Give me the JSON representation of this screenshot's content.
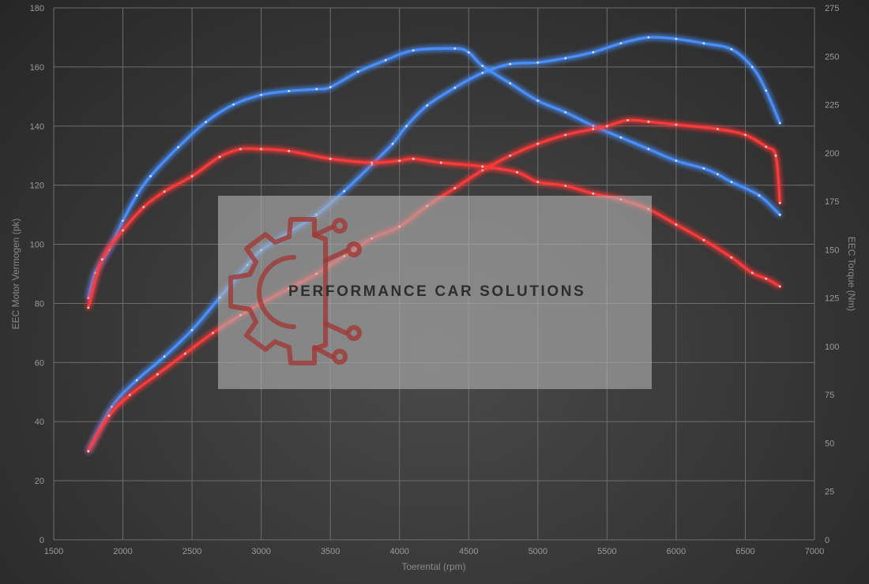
{
  "chart_data": {
    "type": "line",
    "xlabel": "Toerental (rpm)",
    "ylabel_left": "EEC Motor Vermogen (pk)",
    "ylabel_right": "EEC Torque (Nm)",
    "xlim": [
      1500,
      7000
    ],
    "ylim_left": [
      0,
      180
    ],
    "ylim_right": [
      0,
      275
    ],
    "x_ticks": [
      1500,
      2000,
      2500,
      3000,
      3500,
      4000,
      4500,
      5000,
      5500,
      6000,
      6500,
      7000
    ],
    "y_ticks_left": [
      0,
      20,
      40,
      60,
      80,
      100,
      120,
      140,
      160,
      180
    ],
    "y_ticks_right": [
      0,
      25,
      50,
      75,
      100,
      125,
      150,
      175,
      200,
      225,
      250,
      275
    ],
    "grid": true,
    "legend": "none",
    "series": [
      {
        "color": "#4a90ff",
        "axis": "left",
        "points": [
          [
            1750,
            30
          ],
          [
            1920,
            45
          ],
          [
            2100,
            54
          ],
          [
            2300,
            62
          ],
          [
            2500,
            71
          ],
          [
            2700,
            82
          ],
          [
            2900,
            93
          ],
          [
            3000,
            98
          ],
          [
            3200,
            104
          ],
          [
            3400,
            110
          ],
          [
            3600,
            118
          ],
          [
            3800,
            127
          ],
          [
            3950,
            134
          ],
          [
            4050,
            140
          ],
          [
            4200,
            147
          ],
          [
            4400,
            153
          ],
          [
            4600,
            158
          ],
          [
            4800,
            161
          ],
          [
            5000,
            161.5
          ],
          [
            5200,
            163
          ],
          [
            5400,
            165
          ],
          [
            5600,
            168
          ],
          [
            5800,
            170
          ],
          [
            6000,
            169.5
          ],
          [
            6200,
            168
          ],
          [
            6400,
            166
          ],
          [
            6550,
            160
          ],
          [
            6650,
            152
          ],
          [
            6750,
            141
          ]
        ]
      },
      {
        "color": "#4a90ff",
        "axis": "right",
        "points": [
          [
            1750,
            125
          ],
          [
            1800,
            138
          ],
          [
            1900,
            150
          ],
          [
            2000,
            165
          ],
          [
            2100,
            178
          ],
          [
            2200,
            188
          ],
          [
            2400,
            203
          ],
          [
            2600,
            216
          ],
          [
            2800,
            225
          ],
          [
            3000,
            230
          ],
          [
            3200,
            232
          ],
          [
            3400,
            233
          ],
          [
            3500,
            234
          ],
          [
            3700,
            242
          ],
          [
            3900,
            248
          ],
          [
            4100,
            253
          ],
          [
            4400,
            254
          ],
          [
            4500,
            252
          ],
          [
            4600,
            245
          ],
          [
            4800,
            236
          ],
          [
            5000,
            227
          ],
          [
            5200,
            221
          ],
          [
            5400,
            214
          ],
          [
            5600,
            208
          ],
          [
            5800,
            202
          ],
          [
            6000,
            196
          ],
          [
            6200,
            192
          ],
          [
            6300,
            189
          ],
          [
            6400,
            185
          ],
          [
            6600,
            178
          ],
          [
            6750,
            168
          ]
        ]
      },
      {
        "color": "#ff3a3a",
        "axis": "left",
        "points": [
          [
            1750,
            30
          ],
          [
            1900,
            42
          ],
          [
            2050,
            49
          ],
          [
            2250,
            56
          ],
          [
            2450,
            63
          ],
          [
            2650,
            70
          ],
          [
            2850,
            76
          ],
          [
            3000,
            80
          ],
          [
            3200,
            85
          ],
          [
            3400,
            90
          ],
          [
            3600,
            96
          ],
          [
            3800,
            102
          ],
          [
            4000,
            106
          ],
          [
            4200,
            113
          ],
          [
            4400,
            119
          ],
          [
            4600,
            125
          ],
          [
            4800,
            130
          ],
          [
            5000,
            134
          ],
          [
            5200,
            137
          ],
          [
            5400,
            139
          ],
          [
            5500,
            140
          ],
          [
            5650,
            142
          ],
          [
            5800,
            141.5
          ],
          [
            6000,
            140.5
          ],
          [
            6300,
            139
          ],
          [
            6500,
            137
          ],
          [
            6650,
            133
          ],
          [
            6720,
            130
          ],
          [
            6750,
            114
          ]
        ]
      },
      {
        "color": "#ff3a3a",
        "axis": "right",
        "points": [
          [
            1750,
            120
          ],
          [
            1850,
            145
          ],
          [
            2000,
            160
          ],
          [
            2150,
            172
          ],
          [
            2300,
            180
          ],
          [
            2500,
            188
          ],
          [
            2700,
            198
          ],
          [
            2850,
            202
          ],
          [
            3000,
            202
          ],
          [
            3200,
            201
          ],
          [
            3500,
            197
          ],
          [
            3800,
            195
          ],
          [
            4000,
            196
          ],
          [
            4100,
            197
          ],
          [
            4300,
            195
          ],
          [
            4600,
            193
          ],
          [
            4850,
            190
          ],
          [
            5000,
            185
          ],
          [
            5200,
            183
          ],
          [
            5400,
            179
          ],
          [
            5600,
            176
          ],
          [
            5800,
            171
          ],
          [
            6000,
            163
          ],
          [
            6200,
            155
          ],
          [
            6400,
            146
          ],
          [
            6550,
            138
          ],
          [
            6650,
            135
          ],
          [
            6750,
            131
          ]
        ]
      }
    ]
  },
  "watermark": {
    "text": "PERFORMANCE CAR SOLUTIONS",
    "logo": "gear-circuit-logo"
  }
}
